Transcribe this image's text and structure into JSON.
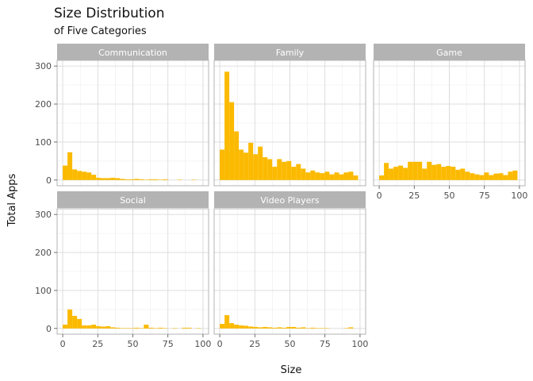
{
  "chart_data": {
    "type": "bar",
    "title": "Size Distribution",
    "subtitle": "of Five Categories",
    "xlabel": "Size",
    "ylabel": "Total Apps",
    "xlim": [
      -4,
      104
    ],
    "ylim": [
      -15,
      315
    ],
    "x_ticks": [
      0,
      25,
      50,
      75,
      100
    ],
    "y_ticks": [
      0,
      100,
      200,
      300
    ],
    "bin_width": 3.4,
    "bar_color": "#FBBA00",
    "strip_color": "#B3B3B3",
    "grid": true,
    "facets": [
      {
        "name": "Communication",
        "x": [
          1.7,
          5.1,
          8.5,
          11.9,
          15.3,
          18.7,
          22.1,
          25.5,
          28.9,
          32.3,
          35.7,
          39.1,
          42.5,
          45.9,
          49.3,
          52.7,
          56.1,
          59.5,
          62.9,
          66.3,
          69.7,
          73.1,
          76.5,
          79.9,
          83.3,
          86.7,
          90.1,
          93.5,
          96.9,
          100.3
        ],
        "values": [
          38,
          73,
          28,
          24,
          22,
          20,
          14,
          6,
          5,
          5,
          6,
          5,
          3,
          2,
          2,
          3,
          2,
          1,
          2,
          2,
          1,
          2,
          0,
          0,
          1,
          0,
          0,
          1,
          0,
          0
        ]
      },
      {
        "name": "Family",
        "x": [
          1.7,
          5.1,
          8.5,
          11.9,
          15.3,
          18.7,
          22.1,
          25.5,
          28.9,
          32.3,
          35.7,
          39.1,
          42.5,
          45.9,
          49.3,
          52.7,
          56.1,
          59.5,
          62.9,
          66.3,
          69.7,
          73.1,
          76.5,
          79.9,
          83.3,
          86.7,
          90.1,
          93.5,
          96.9,
          100.3
        ],
        "values": [
          80,
          285,
          205,
          128,
          80,
          72,
          98,
          68,
          88,
          60,
          55,
          35,
          55,
          48,
          50,
          35,
          42,
          30,
          20,
          25,
          20,
          18,
          22,
          15,
          20,
          15,
          20,
          22,
          12,
          0
        ]
      },
      {
        "name": "Game",
        "x": [
          1.7,
          5.1,
          8.5,
          11.9,
          15.3,
          18.7,
          22.1,
          25.5,
          28.9,
          32.3,
          35.7,
          39.1,
          42.5,
          45.9,
          49.3,
          52.7,
          56.1,
          59.5,
          62.9,
          66.3,
          69.7,
          73.1,
          76.5,
          79.9,
          83.3,
          86.7,
          90.1,
          93.5,
          96.9,
          100.3
        ],
        "values": [
          12,
          45,
          30,
          35,
          38,
          32,
          48,
          48,
          48,
          30,
          48,
          40,
          42,
          35,
          37,
          35,
          27,
          30,
          22,
          18,
          15,
          13,
          20,
          13,
          17,
          18,
          13,
          22,
          25,
          0
        ]
      },
      {
        "name": "Social",
        "x": [
          1.7,
          5.1,
          8.5,
          11.9,
          15.3,
          18.7,
          22.1,
          25.5,
          28.9,
          32.3,
          35.7,
          39.1,
          42.5,
          45.9,
          49.3,
          52.7,
          56.1,
          59.5,
          62.9,
          66.3,
          69.7,
          73.1,
          76.5,
          79.9,
          83.3,
          86.7,
          90.1,
          93.5,
          96.9,
          100.3
        ],
        "values": [
          10,
          50,
          33,
          25,
          8,
          8,
          10,
          6,
          5,
          6,
          3,
          2,
          1,
          1,
          1,
          2,
          1,
          10,
          2,
          1,
          2,
          1,
          0,
          1,
          0,
          2,
          2,
          0,
          1,
          0
        ]
      },
      {
        "name": "Video Players",
        "x": [
          1.7,
          5.1,
          8.5,
          11.9,
          15.3,
          18.7,
          22.1,
          25.5,
          28.9,
          32.3,
          35.7,
          39.1,
          42.5,
          45.9,
          49.3,
          52.7,
          56.1,
          59.5,
          62.9,
          66.3,
          69.7,
          73.1,
          76.5,
          79.9,
          83.3,
          86.7,
          90.1,
          93.5,
          96.9,
          100.3
        ],
        "values": [
          12,
          35,
          14,
          10,
          8,
          7,
          5,
          4,
          3,
          4,
          3,
          2,
          3,
          2,
          4,
          4,
          2,
          3,
          1,
          2,
          1,
          1,
          1,
          0,
          0,
          0,
          1,
          3,
          0,
          0
        ]
      }
    ]
  }
}
